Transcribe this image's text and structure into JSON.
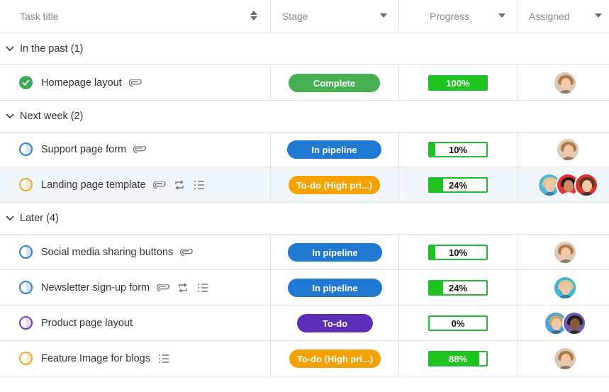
{
  "header": {
    "task_title": "Task title",
    "stage": "Stage",
    "progress": "Progress",
    "assigned": "Assigned"
  },
  "groups": [
    {
      "label": "In the past (1)"
    },
    {
      "label": "Next week (2)"
    },
    {
      "label": "Later (4)"
    }
  ],
  "rows": [
    {
      "name": "Homepage layout",
      "stage": "Complete",
      "stage_color": "#46b052",
      "progress_label": "100%",
      "progress_value": 1.0,
      "status": "done",
      "status_color": "#3aaa55"
    },
    {
      "name": "Support page form",
      "stage": "In pipeline",
      "stage_color": "#1f78d1",
      "progress_label": "10%",
      "progress_value": 0.1,
      "status": "in-progress",
      "status_color": "#2f80d6"
    },
    {
      "name": "Landing page template",
      "stage": "To-do (High pri...)",
      "stage_color": "#f5a100",
      "progress_label": "24%",
      "progress_value": 0.24,
      "status": "in-progress",
      "status_color": "#f5a623"
    },
    {
      "name": "Social media sharing buttons",
      "stage": "In pipeline",
      "stage_color": "#1f78d1",
      "progress_label": "10%",
      "progress_value": 0.1,
      "status": "in-progress",
      "status_color": "#2f80d6"
    },
    {
      "name": "Newsletter sign-up form",
      "stage": "In pipeline",
      "stage_color": "#1f78d1",
      "progress_label": "24%",
      "progress_value": 0.24,
      "status": "in-progress",
      "status_color": "#2f80d6"
    },
    {
      "name": "Product page layout",
      "stage": "To-do",
      "stage_color": "#5b2fb8",
      "progress_label": "0%",
      "progress_value": 0.0,
      "status": "in-progress",
      "status_color": "#6a3cc0"
    },
    {
      "name": "Feature Image for blogs",
      "stage": "To-do (High pri...)",
      "stage_color": "#f5a100",
      "progress_label": "88%",
      "progress_value": 0.88,
      "status": "in-progress",
      "status_color": "#f5a623"
    }
  ],
  "icons": {
    "attachment": "paperclip-icon",
    "recurring": "repeat-icon",
    "checklist": "checklist-icon",
    "expand": "chevron-down-icon",
    "sort": "sort-icon",
    "dropdown": "caret-down-icon"
  }
}
